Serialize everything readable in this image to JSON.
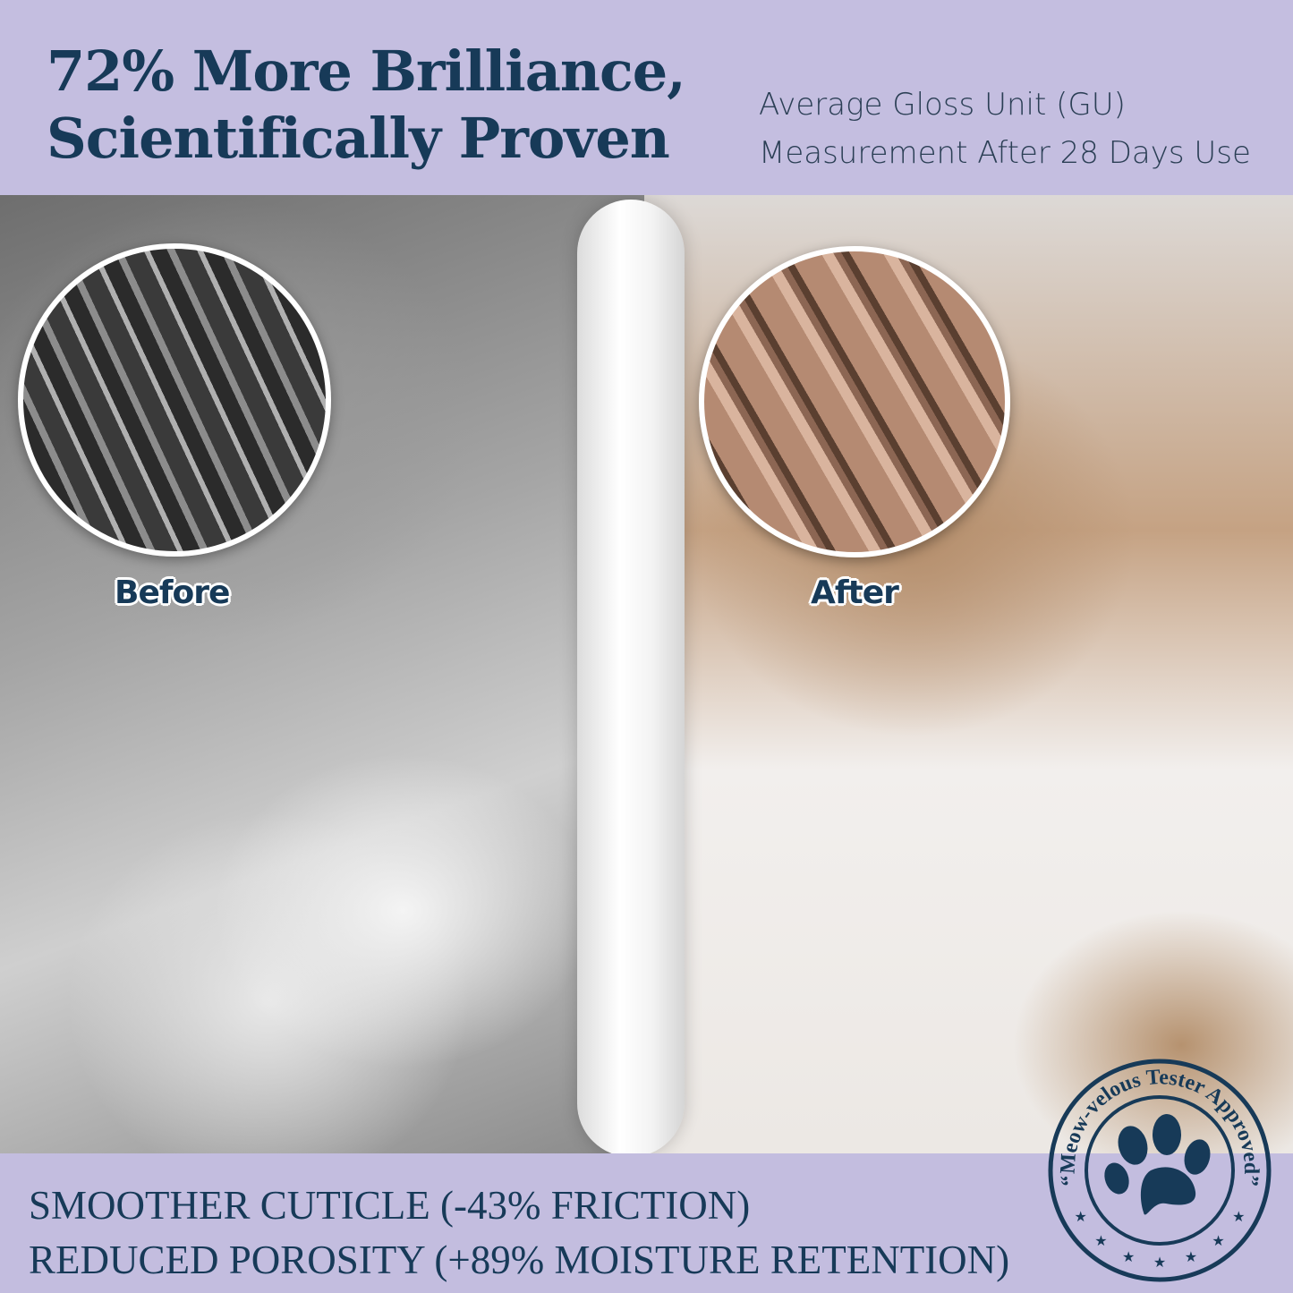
{
  "header": {
    "title_lines": [
      "72% More Brilliance,",
      "Scientifically Proven"
    ],
    "subtitle_lines": [
      "Average Gloss Unit (GU)",
      "Measurement After 28 Days Use"
    ]
  },
  "comparison": {
    "before_label": "Before",
    "after_label": "After"
  },
  "benefits": [
    "SMOOTHER CUTICLE (-43% FRICTION)",
    "REDUCED POROSITY (+89% MOISTURE RETENTION)"
  ],
  "stamp": {
    "text": "“Meow-velous Tester Approved”",
    "icon": "paw-icon",
    "stars": 7
  },
  "colors": {
    "band": "#c3bddf",
    "navy": "#173a58"
  }
}
